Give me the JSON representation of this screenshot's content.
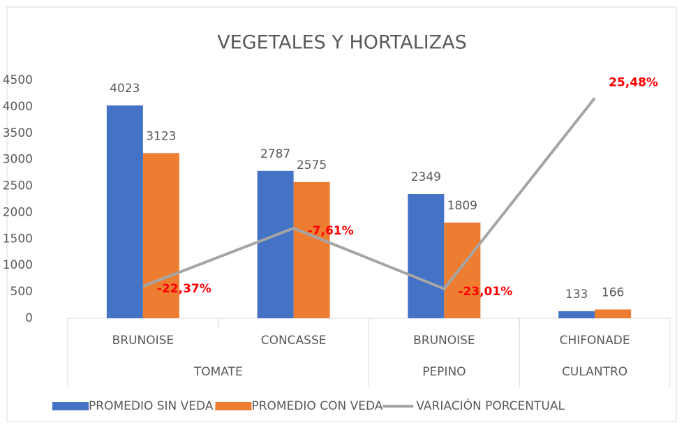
{
  "chart_data": {
    "type": "bar",
    "title": "VEGETALES Y HORTALIZAS",
    "categories": [
      "BRUNOISE",
      "CONCASSE",
      "BRUNOISE",
      "CHIFONADE"
    ],
    "groups": [
      "TOMATE",
      "TOMATE",
      "PEPINO",
      "CULANTRO"
    ],
    "series": [
      {
        "name": "PROMEDIO SIN VEDA",
        "color": "#4472c4",
        "values": [
          4023,
          2787,
          2349,
          133
        ]
      },
      {
        "name": "PROMEDIO CON VEDA",
        "color": "#ed7d31",
        "values": [
          3123,
          2575,
          1809,
          166
        ]
      },
      {
        "name": "VARIACIÓN PORCENTUAL",
        "type": "line",
        "axis": "y2",
        "color": "#a5a5a5",
        "values": [
          -22.37,
          -7.61,
          -23.01,
          25.48
        ],
        "value_labels": [
          "-22,37%",
          "-7,61%",
          "-23,01%",
          "25,48%"
        ],
        "label_color": "#ff0000"
      }
    ],
    "ylim": [
      0,
      4500
    ],
    "yticks": [
      0,
      500,
      1000,
      1500,
      2000,
      2500,
      3000,
      3500,
      4000,
      4500
    ],
    "y2lim": [
      -30.5,
      30
    ],
    "grid": false,
    "legend": "bottom"
  }
}
